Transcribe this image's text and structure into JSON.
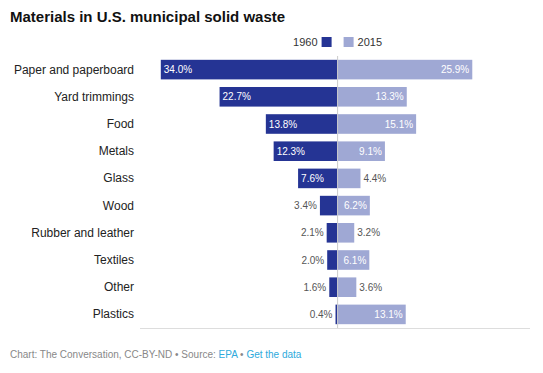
{
  "chart_data": {
    "type": "bar",
    "orientation": "horizontal",
    "title": "Materials in U.S. municipal solid waste",
    "categories": [
      "Paper and paperboard",
      "Yard trimmings",
      "Food",
      "Metals",
      "Glass",
      "Wood",
      "Rubber and leather",
      "Textiles",
      "Other",
      "Plastics"
    ],
    "series": [
      {
        "name": "1960",
        "color": "#253494",
        "values": [
          34.0,
          22.7,
          13.8,
          12.3,
          7.6,
          3.4,
          2.1,
          2.0,
          1.6,
          0.4
        ],
        "value_labels": [
          "34.0%",
          "22.7%",
          "13.8%",
          "12.3%",
          "7.6%",
          "3.4%",
          "2.1%",
          "2.0%",
          "1.6%",
          "0.4%"
        ]
      },
      {
        "name": "2015",
        "color": "#9fa8d4",
        "values": [
          25.9,
          13.3,
          15.1,
          9.1,
          4.4,
          6.2,
          3.2,
          6.1,
          3.6,
          13.1
        ],
        "value_labels": [
          "25.9%",
          "13.3%",
          "15.1%",
          "9.1%",
          "4.4%",
          "6.2%",
          "3.2%",
          "6.1%",
          "3.6%",
          "13.1%"
        ]
      }
    ],
    "xlim": [
      -38,
      37
    ],
    "tick_labels": "y",
    "data_labels": true,
    "legend": "top",
    "annotations": [
      {
        "text": "Chart: The Conversation, CC-BY-ND • Source: ",
        "color": "#888888"
      },
      {
        "text": "EPA",
        "color": "#2eaadc"
      },
      {
        "text": " • ",
        "color": "#888888"
      },
      {
        "text": "Get the data",
        "color": "#2eaadc"
      }
    ]
  }
}
